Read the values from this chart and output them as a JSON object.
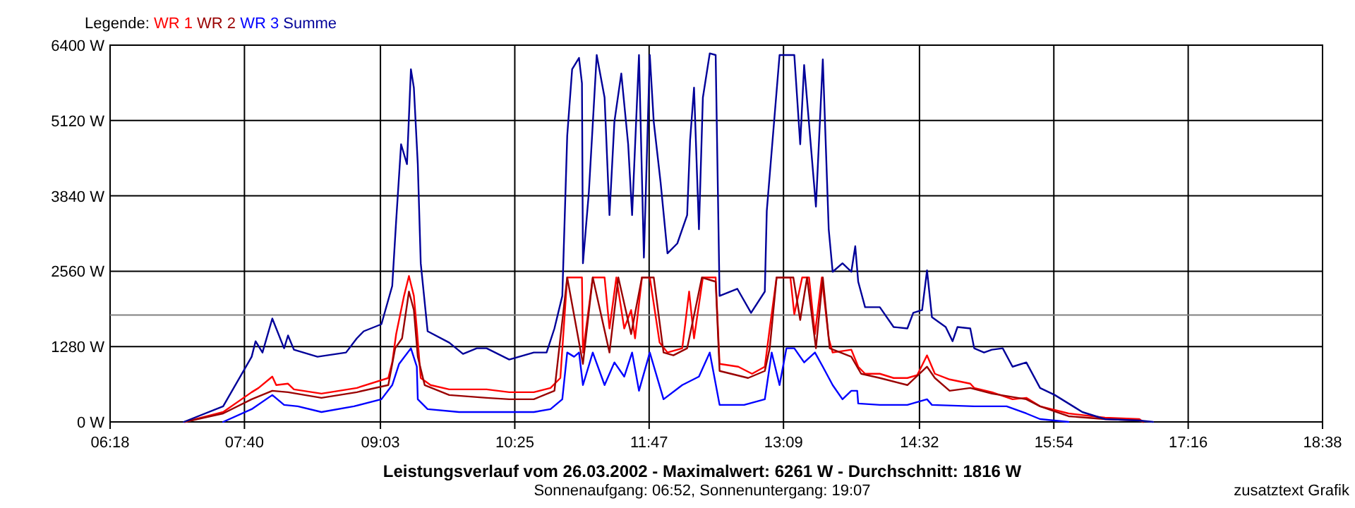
{
  "chart_data": {
    "type": "line",
    "title": "Leistungsverlauf vom 26.03.2002 - Maximalwert: 6261 W - Durchschnitt: 1816 W",
    "subtitle": "Sonnenaufgang: 06:52, Sonnenuntergang: 19:07",
    "annotations": [
      "zusatztext Grafik"
    ],
    "legend_title": "Legende:",
    "legend": "top left",
    "grid": true,
    "line_style": "solid",
    "marker": "none",
    "xlim": [
      6.3,
      18.6333
    ],
    "xticks": [
      {
        "value": 6.3,
        "label": "06:18"
      },
      {
        "value": 7.6667,
        "label": "07:40"
      },
      {
        "value": 9.05,
        "label": "09:03"
      },
      {
        "value": 10.4167,
        "label": "10:25"
      },
      {
        "value": 11.7833,
        "label": "11:47"
      },
      {
        "value": 13.15,
        "label": "13:09"
      },
      {
        "value": 14.5333,
        "label": "14:32"
      },
      {
        "value": 15.9,
        "label": "15:54"
      },
      {
        "value": 17.2667,
        "label": "17:16"
      },
      {
        "value": 18.6333,
        "label": "18:38"
      }
    ],
    "ylim": [
      0,
      6400
    ],
    "yticks": [
      {
        "value": 0,
        "label": "0 W"
      },
      {
        "value": 1280,
        "label": "1280 W"
      },
      {
        "value": 2560,
        "label": "2560 W"
      },
      {
        "value": 3840,
        "label": "3840 W"
      },
      {
        "value": 5120,
        "label": "5120 W"
      },
      {
        "value": 6400,
        "label": "6400 W"
      }
    ],
    "ref_lines": [
      {
        "axis": "y",
        "value": 1816,
        "color": "#808080"
      }
    ],
    "series": [
      {
        "name": "WR 1",
        "color": "#ff0000",
        "x": [
          7.06,
          7.45,
          7.74,
          7.81,
          7.95,
          7.99,
          8.11,
          8.17,
          8.45,
          8.81,
          9.13,
          9.17,
          9.21,
          9.29,
          9.34,
          9.39,
          9.42,
          9.46,
          9.56,
          9.75,
          9.93,
          10.13,
          10.36,
          10.61,
          10.78,
          10.88,
          10.95,
          11.1,
          11.11,
          11.21,
          11.33,
          11.38,
          11.45,
          11.53,
          11.6,
          11.64,
          11.71,
          11.79,
          11.89,
          11.97,
          12.12,
          12.19,
          12.24,
          12.33,
          12.46,
          12.5,
          12.69,
          12.83,
          12.96,
          13.01,
          13.08,
          13.22,
          13.26,
          13.34,
          13.41,
          13.47,
          13.54,
          13.61,
          13.65,
          13.84,
          13.91,
          13.98,
          14.13,
          14.27,
          14.41,
          14.51,
          14.61,
          14.69,
          14.84,
          15.05,
          15.09,
          15.27,
          15.48,
          15.62,
          15.76,
          16.05,
          16.42,
          16.77,
          16.81
        ],
        "values": [
          0,
          168,
          505,
          577,
          770,
          626,
          650,
          553,
          481,
          577,
          746,
          1011,
          1492,
          2141,
          2478,
          2141,
          1588,
          746,
          626,
          553,
          553,
          553,
          505,
          505,
          577,
          746,
          2454,
          2454,
          1179,
          2454,
          2454,
          1588,
          2454,
          1588,
          1901,
          1420,
          2454,
          2454,
          1347,
          1179,
          1251,
          2214,
          1420,
          2454,
          2454,
          986,
          938,
          818,
          938,
          1588,
          2454,
          2454,
          1829,
          2454,
          2454,
          1492,
          2454,
          1420,
          1179,
          1227,
          938,
          818,
          818,
          746,
          746,
          794,
          1131,
          818,
          722,
          650,
          577,
          505,
          385,
          409,
          265,
          144,
          72,
          48,
          0
        ]
      },
      {
        "name": "WR 2",
        "color": "#990000",
        "x": [
          7.06,
          7.45,
          7.74,
          7.95,
          8.11,
          8.45,
          8.81,
          9.13,
          9.2,
          9.27,
          9.34,
          9.39,
          9.43,
          9.5,
          9.75,
          10.13,
          10.36,
          10.61,
          10.82,
          10.95,
          11.11,
          11.21,
          11.38,
          11.47,
          11.6,
          11.71,
          11.83,
          11.93,
          12.03,
          12.17,
          12.32,
          12.46,
          12.5,
          12.79,
          12.96,
          13.01,
          13.08,
          13.25,
          13.32,
          13.39,
          13.48,
          13.55,
          13.62,
          13.84,
          13.94,
          14.13,
          14.41,
          14.61,
          14.69,
          14.84,
          15.05,
          15.27,
          15.62,
          15.76,
          16.05,
          16.42,
          16.77,
          16.81
        ],
        "values": [
          0,
          144,
          385,
          529,
          505,
          409,
          505,
          626,
          1251,
          1420,
          2214,
          1901,
          1107,
          626,
          457,
          409,
          385,
          385,
          529,
          2454,
          986,
          2454,
          1179,
          2454,
          1492,
          2454,
          2454,
          1179,
          1131,
          1251,
          2454,
          2382,
          866,
          746,
          866,
          1251,
          2454,
          2454,
          1732,
          2454,
          1251,
          2454,
          1251,
          1107,
          818,
          746,
          626,
          938,
          746,
          529,
          577,
          481,
          385,
          265,
          96,
          48,
          24,
          0
        ]
      },
      {
        "name": "WR 3",
        "color": "#0000ff",
        "x": [
          7.45,
          7.74,
          7.95,
          8.07,
          8.21,
          8.45,
          8.78,
          9.06,
          9.17,
          9.24,
          9.36,
          9.42,
          9.43,
          9.53,
          9.85,
          10.61,
          10.78,
          10.9,
          10.95,
          11.02,
          11.07,
          11.11,
          11.21,
          11.33,
          11.43,
          11.53,
          11.61,
          11.68,
          11.79,
          11.93,
          12.12,
          12.29,
          12.4,
          12.5,
          12.75,
          12.96,
          13.03,
          13.11,
          13.18,
          13.26,
          13.36,
          13.47,
          13.55,
          13.65,
          13.75,
          13.84,
          13.9,
          13.91,
          14.13,
          14.41,
          14.61,
          14.66,
          15.09,
          15.42,
          15.62,
          15.76,
          16.05
        ],
        "values": [
          0,
          217,
          457,
          289,
          265,
          168,
          265,
          385,
          626,
          986,
          1251,
          938,
          385,
          217,
          168,
          168,
          217,
          385,
          1179,
          1107,
          1179,
          626,
          1179,
          626,
          1011,
          770,
          1179,
          529,
          1179,
          385,
          626,
          770,
          1179,
          289,
          289,
          385,
          1179,
          626,
          1251,
          1251,
          1011,
          1179,
          938,
          626,
          385,
          529,
          529,
          313,
          289,
          289,
          385,
          289,
          265,
          265,
          144,
          48,
          0
        ]
      },
      {
        "name": "Summe",
        "color": "#000099",
        "x": [
          7.05,
          7.45,
          7.74,
          7.78,
          7.85,
          7.95,
          8.07,
          8.11,
          8.17,
          8.41,
          8.7,
          8.81,
          8.88,
          9.06,
          9.17,
          9.21,
          9.26,
          9.32,
          9.36,
          9.39,
          9.43,
          9.46,
          9.53,
          9.75,
          9.89,
          10.03,
          10.13,
          10.36,
          10.61,
          10.74,
          10.82,
          10.9,
          10.95,
          11.0,
          11.07,
          11.1,
          11.11,
          11.17,
          11.25,
          11.33,
          11.38,
          11.43,
          11.5,
          11.57,
          11.61,
          11.68,
          11.73,
          11.79,
          11.83,
          11.9,
          11.97,
          12.07,
          12.17,
          12.2,
          12.24,
          12.29,
          12.33,
          12.4,
          12.46,
          12.5,
          12.68,
          12.82,
          12.96,
          12.98,
          13.11,
          13.18,
          13.26,
          13.32,
          13.36,
          13.48,
          13.55,
          13.61,
          13.65,
          13.75,
          13.84,
          13.88,
          13.91,
          13.98,
          14.13,
          14.27,
          14.41,
          14.47,
          14.56,
          14.61,
          14.66,
          14.8,
          14.87,
          14.92,
          15.05,
          15.09,
          15.19,
          15.27,
          15.38,
          15.48,
          15.62,
          15.76,
          15.91,
          16.19,
          16.42,
          16.77,
          16.91
        ],
        "values": [
          0,
          265,
          1107,
          1371,
          1179,
          1756,
          1251,
          1468,
          1227,
          1107,
          1179,
          1420,
          1540,
          1660,
          2310,
          3417,
          4716,
          4379,
          5991,
          5678,
          4379,
          2695,
          1540,
          1347,
          1155,
          1251,
          1251,
          1059,
          1179,
          1179,
          1588,
          2141,
          4860,
          5991,
          6183,
          5750,
          2695,
          3898,
          6232,
          5510,
          3513,
          5101,
          5919,
          4716,
          3513,
          6232,
          2791,
          6232,
          5101,
          4066,
          2863,
          3032,
          3513,
          4788,
          5678,
          3272,
          5510,
          6261,
          6232,
          2141,
          2262,
          1853,
          2214,
          3585,
          6232,
          6232,
          6232,
          4716,
          6063,
          3657,
          6159,
          3272,
          2550,
          2695,
          2550,
          2984,
          2382,
          1949,
          1949,
          1612,
          1588,
          1853,
          1901,
          2574,
          1780,
          1612,
          1371,
          1612,
          1588,
          1251,
          1179,
          1227,
          1251,
          938,
          1011,
          577,
          457,
          168,
          48,
          24,
          0
        ]
      }
    ]
  }
}
